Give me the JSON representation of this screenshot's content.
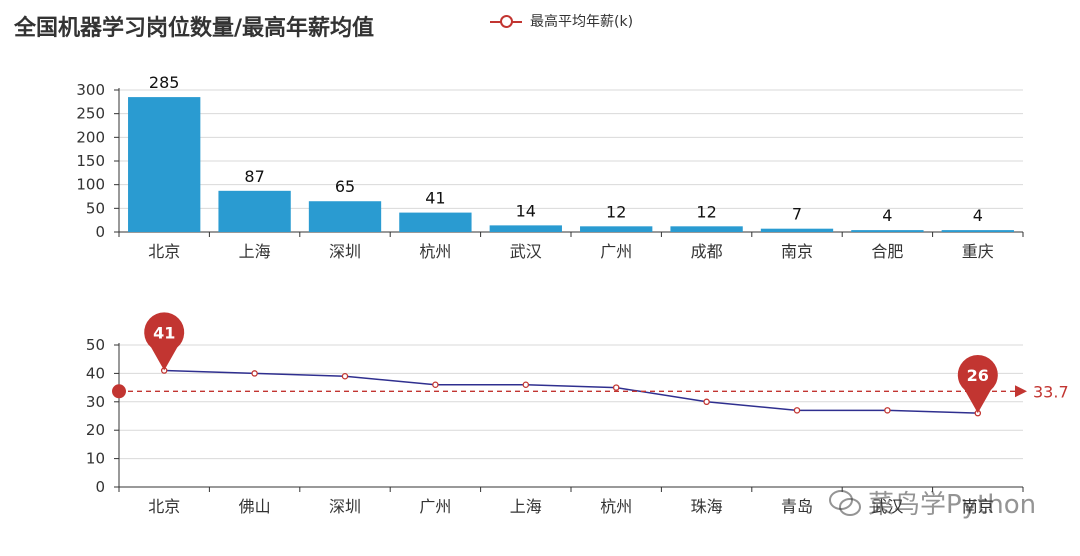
{
  "title": "全国机器学习岗位数量/最高年薪均值",
  "legend": {
    "label": "最高平均年薪(k)",
    "color": "#c23531"
  },
  "watermark": "菜鸟学Python",
  "colors": {
    "bar": "#2a9bd1",
    "line": "#2f2f8f",
    "marker": "#c23531",
    "grid": "#d9d9d9",
    "axis": "#333333"
  },
  "chart_data": [
    {
      "type": "bar",
      "categories": [
        "北京",
        "上海",
        "深圳",
        "杭州",
        "武汉",
        "广州",
        "成都",
        "南京",
        "合肥",
        "重庆"
      ],
      "values": [
        285,
        87,
        65,
        41,
        14,
        12,
        12,
        7,
        4,
        4
      ],
      "ylim": [
        0,
        300
      ],
      "yticks": [
        0,
        50,
        100,
        150,
        200,
        250,
        300
      ],
      "data_labels": true,
      "grid": true
    },
    {
      "type": "line",
      "categories": [
        "北京",
        "佛山",
        "深圳",
        "广州",
        "上海",
        "杭州",
        "珠海",
        "青岛",
        "武汉",
        "南京"
      ],
      "series": [
        {
          "name": "最高平均年薪(k)",
          "values": [
            41,
            40,
            39,
            36,
            36,
            35,
            30,
            27,
            27,
            26
          ]
        }
      ],
      "ylim": [
        0,
        50
      ],
      "yticks": [
        0,
        10,
        20,
        30,
        40,
        50
      ],
      "mark_points": [
        {
          "label": "41",
          "value": 41,
          "category": "北京"
        },
        {
          "label": "26",
          "value": 26,
          "category": "南京"
        }
      ],
      "mark_line": {
        "label": "33.7",
        "value": 33.7
      },
      "grid": true
    }
  ]
}
